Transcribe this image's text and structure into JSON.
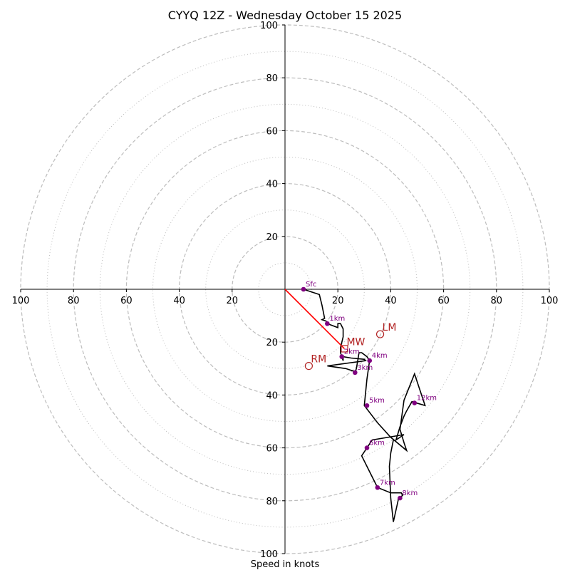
{
  "chart_data": {
    "type": "hodograph",
    "title": "CYYQ 12Z - Wednesday October 15 2025",
    "xlabel": "Speed in knots",
    "range": 100,
    "rings_major": [
      20,
      40,
      60,
      80,
      100
    ],
    "rings_minor": [
      10,
      30,
      50,
      70,
      90
    ],
    "axis_ticks": [
      20,
      40,
      60,
      80,
      100
    ],
    "colors": {
      "trace": "#000000",
      "height_marker": "#800080",
      "motion": "#b22222",
      "mean_wind_line": "#ff0000",
      "ring": "#bdbdbd"
    },
    "trace": [
      [
        7,
        0
      ],
      [
        13,
        -2
      ],
      [
        14,
        -6
      ],
      [
        15,
        -11
      ],
      [
        14,
        -11.5
      ],
      [
        15.5,
        -12
      ],
      [
        16,
        -13
      ],
      [
        20,
        -14.5
      ],
      [
        20,
        -13
      ],
      [
        21,
        -13
      ],
      [
        22,
        -15
      ],
      [
        22,
        -18
      ],
      [
        21.5,
        -20
      ],
      [
        21,
        -22
      ],
      [
        21,
        -24
      ],
      [
        22,
        -27
      ],
      [
        22,
        -25.5
      ],
      [
        25,
        -26
      ],
      [
        30,
        -26.5
      ],
      [
        30.5,
        -27
      ],
      [
        16,
        -29
      ],
      [
        23,
        -30
      ],
      [
        26,
        -31
      ],
      [
        26.5,
        -31.5
      ],
      [
        27,
        -30
      ],
      [
        28,
        -24
      ],
      [
        29,
        -24
      ],
      [
        31,
        -25.5
      ],
      [
        32,
        -27
      ],
      [
        31,
        -34
      ],
      [
        30,
        -44
      ],
      [
        35,
        -50.5
      ],
      [
        40,
        -56
      ],
      [
        46,
        -61
      ],
      [
        45,
        -58
      ],
      [
        43.5,
        -53
      ],
      [
        45,
        -42
      ],
      [
        49,
        -32
      ],
      [
        53,
        -44
      ],
      [
        48,
        -42.5
      ],
      [
        46,
        -46
      ],
      [
        45,
        -48
      ],
      [
        43.5,
        -52
      ],
      [
        42,
        -57
      ],
      [
        45,
        -55
      ],
      [
        33,
        -57
      ],
      [
        31,
        -60
      ],
      [
        29,
        -63
      ],
      [
        33,
        -71
      ],
      [
        35,
        -75
      ],
      [
        40,
        -77
      ],
      [
        44,
        -77
      ],
      [
        44.5,
        -78
      ],
      [
        43,
        -79
      ],
      [
        41,
        -88
      ],
      [
        40,
        -79
      ],
      [
        39.5,
        -67
      ],
      [
        40,
        -62
      ],
      [
        41,
        -57
      ]
    ],
    "height_markers": [
      {
        "label": "Sfc",
        "u": 7,
        "v": 0
      },
      {
        "label": "1km",
        "u": 16,
        "v": -13
      },
      {
        "label": "2km",
        "u": 21.5,
        "v": -25.5
      },
      {
        "label": "3km",
        "u": 26.5,
        "v": -31.5
      },
      {
        "label": "4km",
        "u": 32,
        "v": -27
      },
      {
        "label": "5km",
        "u": 31,
        "v": -44
      },
      {
        "label": "6km",
        "u": 31,
        "v": -60
      },
      {
        "label": "7km",
        "u": 35,
        "v": -75
      },
      {
        "label": "8km",
        "u": 43.5,
        "v": -79
      },
      {
        "label": "12km",
        "u": 49,
        "v": -43
      }
    ],
    "storm_motion": [
      {
        "label": "LM",
        "u": 36,
        "v": -17,
        "marker": "circle"
      },
      {
        "label": "MW",
        "u": 22.5,
        "v": -22.5,
        "marker": "square"
      },
      {
        "label": "RM",
        "u": 9,
        "v": -29,
        "marker": "circle"
      }
    ],
    "mean_wind_vector": {
      "from": [
        0,
        0
      ],
      "to": [
        22.5,
        -22.5
      ]
    }
  }
}
